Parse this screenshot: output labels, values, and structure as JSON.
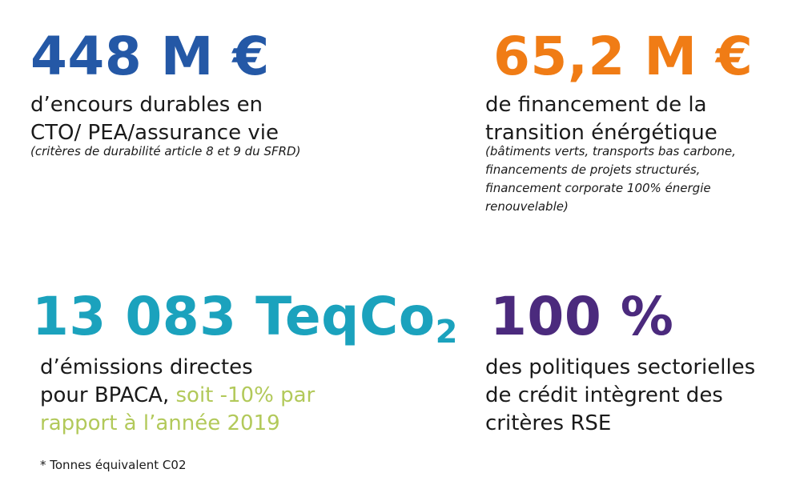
{
  "colors": {
    "blue": "#2458a6",
    "orange": "#f07c15",
    "teal": "#1ba2bd",
    "purple": "#4b2a7d",
    "green_highlight": "#b2c95a",
    "text": "#1a1a1a"
  },
  "stat1": {
    "value": "448 M €",
    "line1": "d’encours durables en",
    "line2": "CTO/ PEA/assurance vie",
    "note": "(critères de durabilité article 8 et 9 du SFRD)"
  },
  "stat2": {
    "value": "65,2 M €",
    "line1": "de financement de la",
    "line2": "transition énérgétique",
    "note_lines": [
      "(bâtiments verts, transports bas carbone,",
      "financements de projets structurés,",
      "financement corporate 100% énergie",
      "renouvelable)"
    ]
  },
  "stat3": {
    "value": "13 083 TeqCo",
    "value_subscript": "2",
    "line1": "d’émissions directes",
    "line2_plain": "pour BPACA, ",
    "line2_highlight": "soit -10% par",
    "line3_highlight": "rapport à l’année 2019",
    "footnote": "*  Tonnes équivalent C02"
  },
  "stat4": {
    "value": "100 %",
    "line1": "des politiques sectorielles",
    "line2": "de crédit intègrent des",
    "line3": "critères RSE"
  }
}
